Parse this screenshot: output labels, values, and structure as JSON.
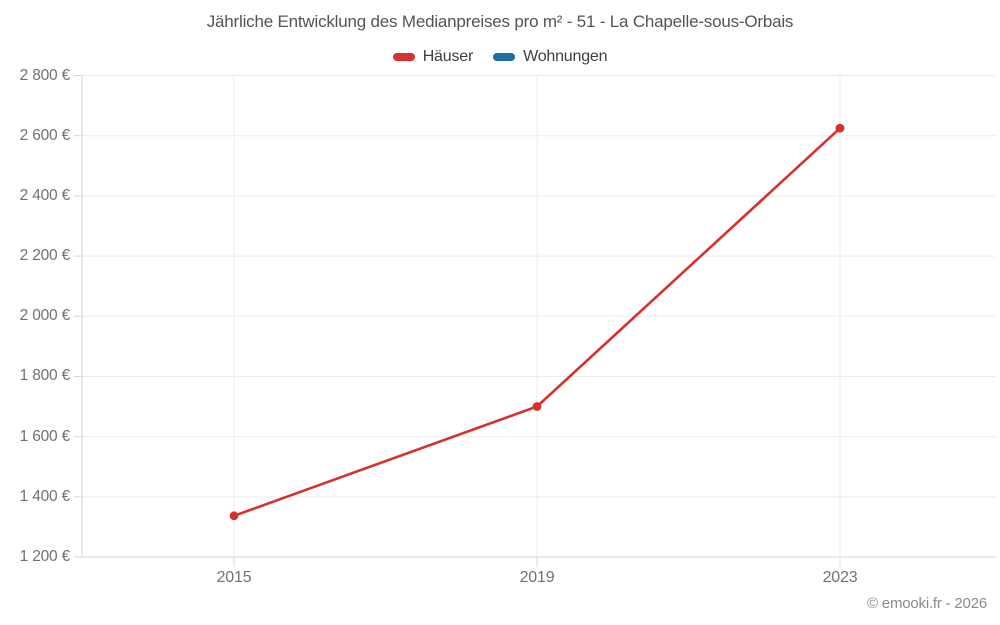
{
  "footer": {
    "copyright": "© emooki.fr - 2026"
  },
  "chart_data": {
    "type": "line",
    "title": "Jährliche Entwicklung des Medianpreises pro m² - 51 - La Chapelle-sous-Orbais",
    "categories": [
      "2015",
      "2019",
      "2023"
    ],
    "series": [
      {
        "name": "Häuser",
        "color": "#d7312d",
        "values": [
          1337,
          1700,
          2625
        ]
      },
      {
        "name": "Wohnungen",
        "color": "#1c6ea4",
        "values": []
      }
    ],
    "xlabel": "",
    "ylabel": "",
    "ylim": [
      1200,
      2800
    ],
    "ytick_step": 200,
    "ytick_labels": [
      "1 200 €",
      "1 400 €",
      "1 600 €",
      "1 800 €",
      "2 000 €",
      "2 200 €",
      "2 400 €",
      "2 600 €",
      "2 800 €"
    ],
    "legend_position": "top",
    "grid": true,
    "colors": {
      "gridline": "#ededed",
      "axis": "#d6d6d6",
      "title_text": "#545454",
      "legend_text": "#3f3f3f",
      "tick_text": "#717171",
      "copyright_text": "#8a8a8a"
    }
  }
}
